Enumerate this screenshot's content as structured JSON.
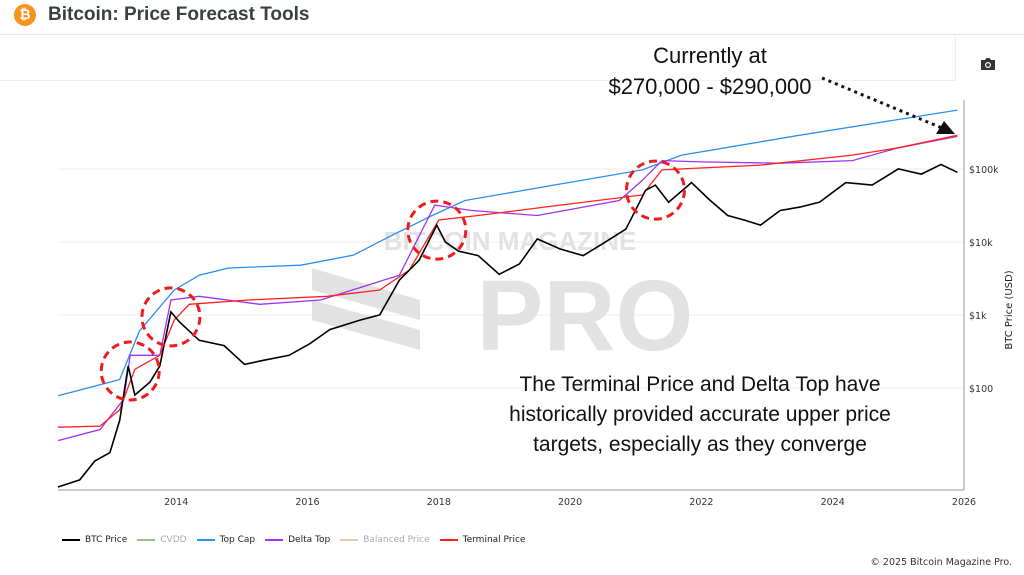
{
  "header": {
    "title": "Bitcoin: Price Forecast Tools",
    "logo_icon": "bitcoin-logo-icon"
  },
  "toolbar": {
    "camera_icon": "camera-icon"
  },
  "annotations": {
    "current_line1": "Currently at",
    "current_line2": "$270,000 - $290,000",
    "note": "The Terminal Price and Delta Top have historically provided accurate upper price targets, especially as they converge",
    "highlighted_cycle_tops": [
      2013.3,
      2013.92,
      2017.97,
      2021.3
    ]
  },
  "watermark": {
    "line1": "BITCOIN MAGAZINE",
    "line2": "PRO"
  },
  "footer": {
    "copyright": "© 2025 Bitcoin Magazine Pro."
  },
  "chart_data": {
    "type": "line",
    "title": "",
    "xlabel": "",
    "ylabel": "BTC Price (USD)",
    "y_scale": "log",
    "ylim": [
      4,
      880000
    ],
    "xlim": [
      2012.2,
      2026
    ],
    "x_ticks": [
      "2014",
      "2016",
      "2018",
      "2020",
      "2022",
      "2024",
      "2026"
    ],
    "y_ticks": [
      {
        "value": 100,
        "label": "$100"
      },
      {
        "value": 1000,
        "label": "$1k"
      },
      {
        "value": 10000,
        "label": "$10k"
      },
      {
        "value": 100000,
        "label": "$100k"
      }
    ],
    "grid": true,
    "legend_position": "bottom-left",
    "legend": [
      {
        "name": "BTC Price",
        "color": "#000000",
        "active": true
      },
      {
        "name": "CVDD",
        "color": "#90c890",
        "active": false
      },
      {
        "name": "Top Cap",
        "color": "#2a8ff0",
        "active": true
      },
      {
        "name": "Delta Top",
        "color": "#a033f0",
        "active": true
      },
      {
        "name": "Balanced Price",
        "color": "#f7c3a8",
        "active": false
      },
      {
        "name": "Terminal Price",
        "color": "#ff2020",
        "active": true
      }
    ],
    "series": [
      {
        "name": "Top Cap",
        "color": "#2a8ff0",
        "points": [
          [
            2012.2,
            78
          ],
          [
            2013.14,
            130
          ],
          [
            2013.44,
            600
          ],
          [
            2013.97,
            2200
          ],
          [
            2014.35,
            3500
          ],
          [
            2014.8,
            4400
          ],
          [
            2015.9,
            4800
          ],
          [
            2016.7,
            6600
          ],
          [
            2017.3,
            12500
          ],
          [
            2017.9,
            23000
          ],
          [
            2018.4,
            37000
          ],
          [
            2019.75,
            60000
          ],
          [
            2021.1,
            97000
          ],
          [
            2021.7,
            155000
          ],
          [
            2023.5,
            290000
          ],
          [
            2025.9,
            640000
          ]
        ]
      },
      {
        "name": "Delta Top",
        "color": "#a033f0",
        "points": [
          [
            2012.2,
            19
          ],
          [
            2012.84,
            27
          ],
          [
            2013.2,
            70
          ],
          [
            2013.3,
            280
          ],
          [
            2013.75,
            280
          ],
          [
            2013.92,
            1600
          ],
          [
            2014.35,
            1800
          ],
          [
            2015.27,
            1400
          ],
          [
            2016.2,
            1600
          ],
          [
            2017.4,
            3500
          ],
          [
            2017.94,
            32000
          ],
          [
            2018.5,
            27000
          ],
          [
            2019.5,
            23000
          ],
          [
            2020.75,
            37000
          ],
          [
            2021.1,
            70000
          ],
          [
            2021.4,
            130000
          ],
          [
            2022.0,
            125000
          ],
          [
            2023.2,
            120000
          ],
          [
            2024.3,
            130000
          ],
          [
            2025.0,
            195000
          ],
          [
            2025.9,
            280000
          ]
        ]
      },
      {
        "name": "Terminal Price",
        "color": "#ff2020",
        "points": [
          [
            2012.2,
            29
          ],
          [
            2012.84,
            30
          ],
          [
            2013.14,
            50
          ],
          [
            2013.37,
            180
          ],
          [
            2013.75,
            280
          ],
          [
            2013.97,
            850
          ],
          [
            2014.2,
            1400
          ],
          [
            2015.1,
            1600
          ],
          [
            2016.3,
            1800
          ],
          [
            2017.1,
            2200
          ],
          [
            2017.55,
            4100
          ],
          [
            2018.0,
            20000
          ],
          [
            2018.6,
            23000
          ],
          [
            2019.85,
            32000
          ],
          [
            2021.1,
            44000
          ],
          [
            2021.4,
            97000
          ],
          [
            2022.9,
            113000
          ],
          [
            2024.3,
            155000
          ],
          [
            2025.0,
            195000
          ],
          [
            2025.9,
            290000
          ]
        ]
      },
      {
        "name": "BTC Price",
        "color": "#000000",
        "points": [
          [
            2012.2,
            4.4
          ],
          [
            2012.53,
            5.5
          ],
          [
            2012.76,
            10
          ],
          [
            2012.99,
            13
          ],
          [
            2013.14,
            36
          ],
          [
            2013.27,
            200
          ],
          [
            2013.37,
            80
          ],
          [
            2013.6,
            120
          ],
          [
            2013.75,
            200
          ],
          [
            2013.92,
            1100
          ],
          [
            2014.05,
            800
          ],
          [
            2014.35,
            450
          ],
          [
            2014.73,
            380
          ],
          [
            2015.04,
            210
          ],
          [
            2015.34,
            240
          ],
          [
            2015.72,
            280
          ],
          [
            2016.03,
            400
          ],
          [
            2016.34,
            630
          ],
          [
            2016.8,
            850
          ],
          [
            2017.1,
            1000
          ],
          [
            2017.4,
            3000
          ],
          [
            2017.7,
            5600
          ],
          [
            2017.97,
            17000
          ],
          [
            2018.1,
            10000
          ],
          [
            2018.3,
            7500
          ],
          [
            2018.6,
            6500
          ],
          [
            2018.92,
            3600
          ],
          [
            2019.23,
            5000
          ],
          [
            2019.5,
            11000
          ],
          [
            2019.85,
            8000
          ],
          [
            2020.2,
            6500
          ],
          [
            2020.5,
            9500
          ],
          [
            2020.85,
            15000
          ],
          [
            2021.15,
            51000
          ],
          [
            2021.3,
            60000
          ],
          [
            2021.5,
            35000
          ],
          [
            2021.85,
            65000
          ],
          [
            2022.12,
            38000
          ],
          [
            2022.4,
            23000
          ],
          [
            2022.65,
            20000
          ],
          [
            2022.9,
            17000
          ],
          [
            2023.2,
            27000
          ],
          [
            2023.5,
            30000
          ],
          [
            2023.8,
            35000
          ],
          [
            2024.2,
            65000
          ],
          [
            2024.6,
            60000
          ],
          [
            2025.0,
            100000
          ],
          [
            2025.35,
            85000
          ],
          [
            2025.65,
            115000
          ],
          [
            2025.9,
            90000
          ]
        ]
      }
    ]
  }
}
